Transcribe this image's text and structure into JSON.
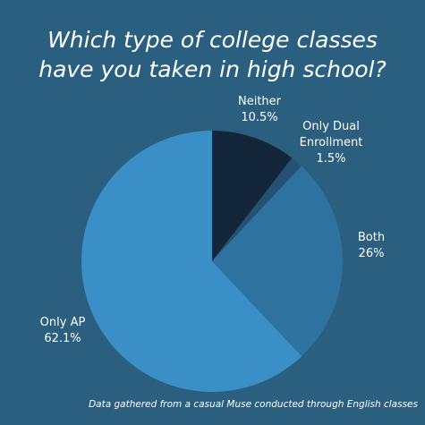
{
  "chart_data": {
    "type": "pie",
    "title": "Which type of college classes have you taken in high school?",
    "categories": [
      "Neither",
      "Only Dual Enrollment",
      "Both",
      "Only AP"
    ],
    "values": [
      10.5,
      1.5,
      26,
      62.1
    ],
    "value_labels": [
      "10.5%",
      "1.5%",
      "26%",
      "62.1%"
    ],
    "colors": [
      "#14263a",
      "#255272",
      "#2e72a0",
      "#3a90c6"
    ],
    "note": "Data gathered from a casual Muse conducted through English classes"
  }
}
